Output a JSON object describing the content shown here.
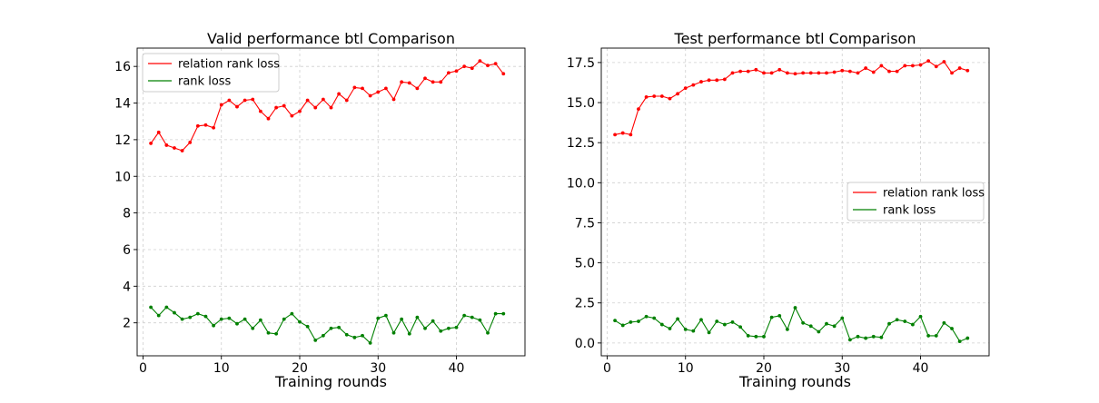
{
  "chart_data": [
    {
      "type": "line",
      "title": "Valid performance btl Comparison",
      "xlabel": "Training rounds",
      "ylabel": "",
      "xlim": [
        -0.75,
        48.75
      ],
      "ylim": [
        0.2,
        17.0
      ],
      "xticks": [
        0,
        10,
        20,
        30,
        40
      ],
      "yticks": [
        2,
        4,
        6,
        8,
        10,
        12,
        14,
        16
      ],
      "grid": true,
      "legend_position": "upper left",
      "x": [
        1,
        2,
        3,
        4,
        5,
        6,
        7,
        8,
        9,
        10,
        11,
        12,
        13,
        14,
        15,
        16,
        17,
        18,
        19,
        20,
        21,
        22,
        23,
        24,
        25,
        26,
        27,
        28,
        29,
        30,
        31,
        32,
        33,
        34,
        35,
        36,
        37,
        38,
        39,
        40,
        41,
        42,
        43,
        44,
        45,
        46
      ],
      "series": [
        {
          "name": "relation rank loss",
          "color": "#ff0000",
          "values": [
            11.8,
            12.4,
            11.7,
            11.55,
            11.4,
            11.85,
            12.75,
            12.8,
            12.65,
            13.9,
            14.15,
            13.8,
            14.15,
            14.2,
            13.55,
            13.15,
            13.75,
            13.85,
            13.3,
            13.55,
            14.15,
            13.75,
            14.2,
            13.75,
            14.5,
            14.15,
            14.85,
            14.8,
            14.4,
            14.6,
            14.8,
            14.2,
            15.15,
            15.1,
            14.8,
            15.35,
            15.15,
            15.15,
            15.65,
            15.75,
            16.0,
            15.9,
            16.3,
            16.05,
            16.15,
            15.6
          ]
        },
        {
          "name": "rank loss",
          "color": "#008000",
          "values": [
            2.85,
            2.4,
            2.85,
            2.55,
            2.2,
            2.3,
            2.5,
            2.35,
            1.85,
            2.2,
            2.25,
            1.95,
            2.2,
            1.7,
            2.15,
            1.45,
            1.4,
            2.2,
            2.5,
            2.05,
            1.8,
            1.05,
            1.3,
            1.7,
            1.75,
            1.35,
            1.2,
            1.3,
            0.9,
            2.25,
            2.4,
            1.45,
            2.2,
            1.4,
            2.3,
            1.7,
            2.1,
            1.55,
            1.7,
            1.75,
            2.4,
            2.3,
            2.15,
            1.45,
            2.5,
            2.5
          ]
        }
      ]
    },
    {
      "type": "line",
      "title": "Test performance btl Comparison",
      "xlabel": "Training rounds",
      "ylabel": "",
      "xlim": [
        -0.75,
        48.75
      ],
      "ylim": [
        -0.8,
        18.4
      ],
      "xticks": [
        0,
        10,
        20,
        30,
        40
      ],
      "yticks": [
        0.0,
        2.5,
        5.0,
        7.5,
        10.0,
        12.5,
        15.0,
        17.5
      ],
      "ytick_labels": [
        "0.0",
        "2.5",
        "5.0",
        "7.5",
        "10.0",
        "12.5",
        "15.0",
        "17.5"
      ],
      "grid": true,
      "legend_position": "center right",
      "x": [
        1,
        2,
        3,
        4,
        5,
        6,
        7,
        8,
        9,
        10,
        11,
        12,
        13,
        14,
        15,
        16,
        17,
        18,
        19,
        20,
        21,
        22,
        23,
        24,
        25,
        26,
        27,
        28,
        29,
        30,
        31,
        32,
        33,
        34,
        35,
        36,
        37,
        38,
        39,
        40,
        41,
        42,
        43,
        44,
        45,
        46
      ],
      "series": [
        {
          "name": "relation rank loss",
          "color": "#ff0000",
          "values": [
            13.0,
            13.1,
            13.0,
            14.6,
            15.35,
            15.4,
            15.4,
            15.25,
            15.55,
            15.9,
            16.1,
            16.3,
            16.4,
            16.4,
            16.45,
            16.85,
            16.95,
            16.95,
            17.05,
            16.85,
            16.85,
            17.05,
            16.85,
            16.8,
            16.85,
            16.85,
            16.85,
            16.85,
            16.9,
            17.0,
            16.95,
            16.85,
            17.15,
            16.9,
            17.3,
            16.95,
            16.95,
            17.3,
            17.3,
            17.35,
            17.6,
            17.25,
            17.55,
            16.85,
            17.15,
            17.0
          ]
        },
        {
          "name": "rank loss",
          "color": "#008000",
          "values": [
            1.4,
            1.1,
            1.3,
            1.35,
            1.65,
            1.55,
            1.15,
            0.9,
            1.5,
            0.85,
            0.75,
            1.45,
            0.65,
            1.35,
            1.15,
            1.3,
            1.0,
            0.45,
            0.4,
            0.4,
            1.6,
            1.7,
            0.85,
            2.2,
            1.25,
            1.05,
            0.7,
            1.2,
            1.05,
            1.55,
            0.2,
            0.4,
            0.3,
            0.4,
            0.35,
            1.2,
            1.45,
            1.35,
            1.15,
            1.65,
            0.45,
            0.45,
            1.25,
            0.9,
            0.1,
            0.3
          ]
        }
      ]
    }
  ]
}
